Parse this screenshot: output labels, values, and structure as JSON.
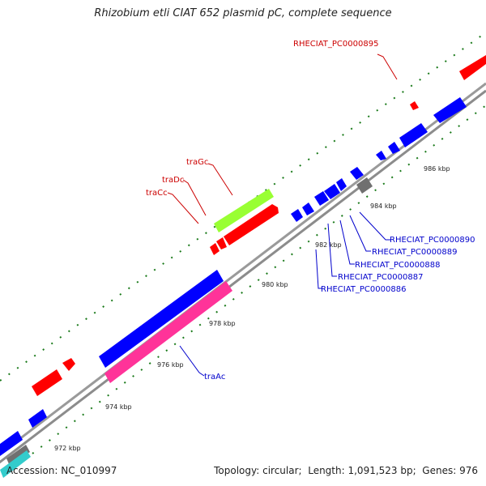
{
  "title": "Rhizobium etli CIAT 652 plasmid pC, complete sequence",
  "footer": {
    "accession_label": "Accession:",
    "accession": "NC_010997",
    "topology_label": "Topology:",
    "topology": "circular",
    "length_label": "Length:",
    "length": "1,091,523 bp",
    "genes_label": "Genes:",
    "genes": "976"
  },
  "colors": {
    "backbone": "#8c8c8c",
    "forward_gene": "#ff0000",
    "reverse_gene": "#0000ff",
    "trag": "#99ff33",
    "traa": "#ff3399",
    "other_feature": "#707070",
    "cyan_feature": "#33cccc",
    "label_red": "#cc0000",
    "label_blue": "#0000cc",
    "tick": "#1a7a1a"
  },
  "ticks": {
    "labels": [
      "972 kbp",
      "974 kbp",
      "976 kbp",
      "978 kbp",
      "980 kbp",
      "982 kbp",
      "984 kbp",
      "986 kbp"
    ]
  },
  "labels": {
    "top": [
      "RHECIAT_PC0000895",
      "traGc",
      "traDc",
      "traCc"
    ],
    "bottom": [
      "RHECIAT_PC0000890",
      "RHECIAT_PC0000889",
      "RHECIAT_PC0000888",
      "RHECIAT_PC0000887",
      "RHECIAT_PC0000886",
      "traAc"
    ]
  }
}
